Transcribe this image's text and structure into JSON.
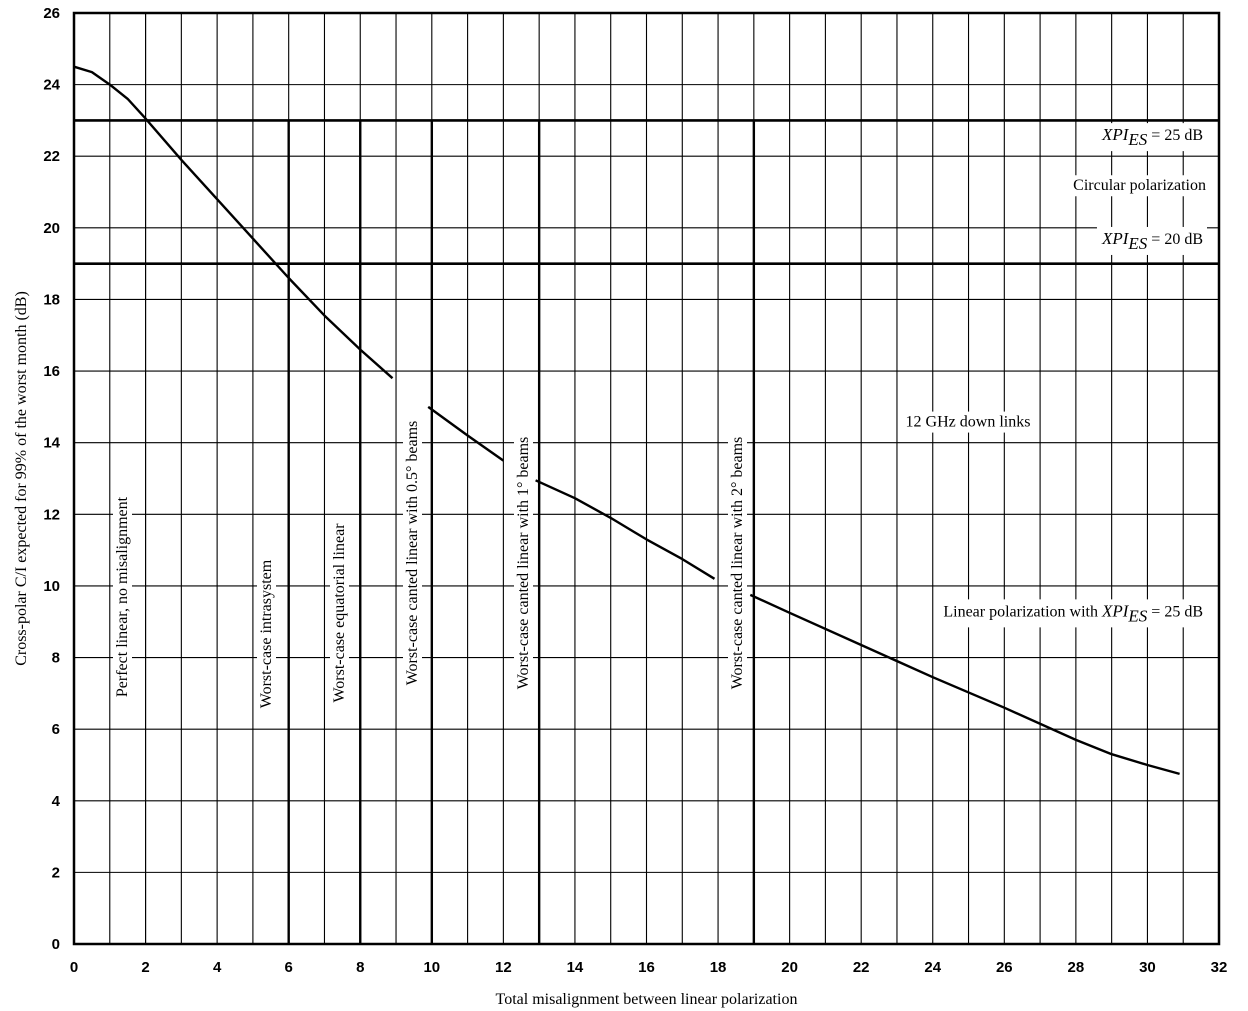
{
  "chart_data": {
    "type": "line",
    "title": "",
    "xlabel": "Total misalignment between linear polarization",
    "ylabel": "Cross-polar C/I expected for 99% of the worst month (dB)",
    "xlim": [
      0,
      32
    ],
    "ylim": [
      0,
      26
    ],
    "x_ticks": [
      "0",
      "2",
      "4",
      "6",
      "8",
      "10",
      "12",
      "14",
      "16",
      "18",
      "20",
      "22",
      "24",
      "26",
      "28",
      "30",
      "32"
    ],
    "x_tick_values": [
      0,
      2,
      4,
      6,
      8,
      10,
      12,
      14,
      16,
      18,
      20,
      22,
      24,
      26,
      28,
      30,
      32
    ],
    "y_ticks": [
      "0",
      "2",
      "4",
      "6",
      "8",
      "10",
      "12",
      "14",
      "16",
      "18",
      "20",
      "22",
      "24",
      "26"
    ],
    "y_tick_values": [
      0,
      2,
      4,
      6,
      8,
      10,
      12,
      14,
      16,
      18,
      20,
      22,
      24,
      26
    ],
    "grid": true,
    "series": [
      {
        "name": "Linear polarization with XPI_ES = 25 dB",
        "segments": [
          [
            [
              0,
              24.5
            ],
            [
              0.5,
              24.35
            ],
            [
              1,
              24.0
            ],
            [
              1.5,
              23.6
            ],
            [
              2,
              23.05
            ],
            [
              3,
              21.9
            ],
            [
              4,
              20.8
            ],
            [
              5,
              19.7
            ],
            [
              6,
              18.6
            ],
            [
              7,
              17.55
            ],
            [
              8,
              16.6
            ],
            [
              8.9,
              15.8
            ]
          ],
          [
            [
              9.9,
              15.0
            ],
            [
              11,
              14.2
            ],
            [
              12,
              13.5
            ]
          ],
          [
            [
              12.9,
              12.95
            ],
            [
              14,
              12.45
            ],
            [
              15,
              11.9
            ],
            [
              16,
              11.3
            ],
            [
              17,
              10.75
            ],
            [
              17.9,
              10.2
            ]
          ],
          [
            [
              18.9,
              9.75
            ],
            [
              20,
              9.25
            ],
            [
              22,
              8.35
            ],
            [
              24,
              7.45
            ],
            [
              26,
              6.6
            ],
            [
              28,
              5.7
            ],
            [
              29,
              5.3
            ],
            [
              30,
              5.0
            ],
            [
              30.9,
              4.75
            ]
          ]
        ]
      }
    ],
    "horizontal_lines": [
      {
        "y": 23,
        "label_main": "XPI",
        "label_sub": "ES",
        "label_rest": " = 25 dB"
      },
      {
        "y": 19,
        "label_main": "XPI",
        "label_sub": "ES",
        "label_rest": " = 20 dB"
      }
    ],
    "vertical_markers": [
      {
        "x": 2,
        "label": "Perfect linear, no misalignment"
      },
      {
        "x": 6,
        "label": "Worst-case intrasystem"
      },
      {
        "x": 8,
        "label": "Worst-case equatorial linear"
      },
      {
        "x": 10,
        "label": "Worst-case canted linear with 0.5° beams"
      },
      {
        "x": 13,
        "label": "Worst-case canted linear with 1° beams"
      },
      {
        "x": 19,
        "label": "Worst-case canted linear with 2° beams"
      }
    ],
    "annotations": {
      "circular": "Circular polarization",
      "downlinks": "12 GHz down links",
      "linear_prefix": "Linear polarization with ",
      "linear_main": "XPI",
      "linear_sub": "ES",
      "linear_rest": " = 25 dB"
    }
  }
}
